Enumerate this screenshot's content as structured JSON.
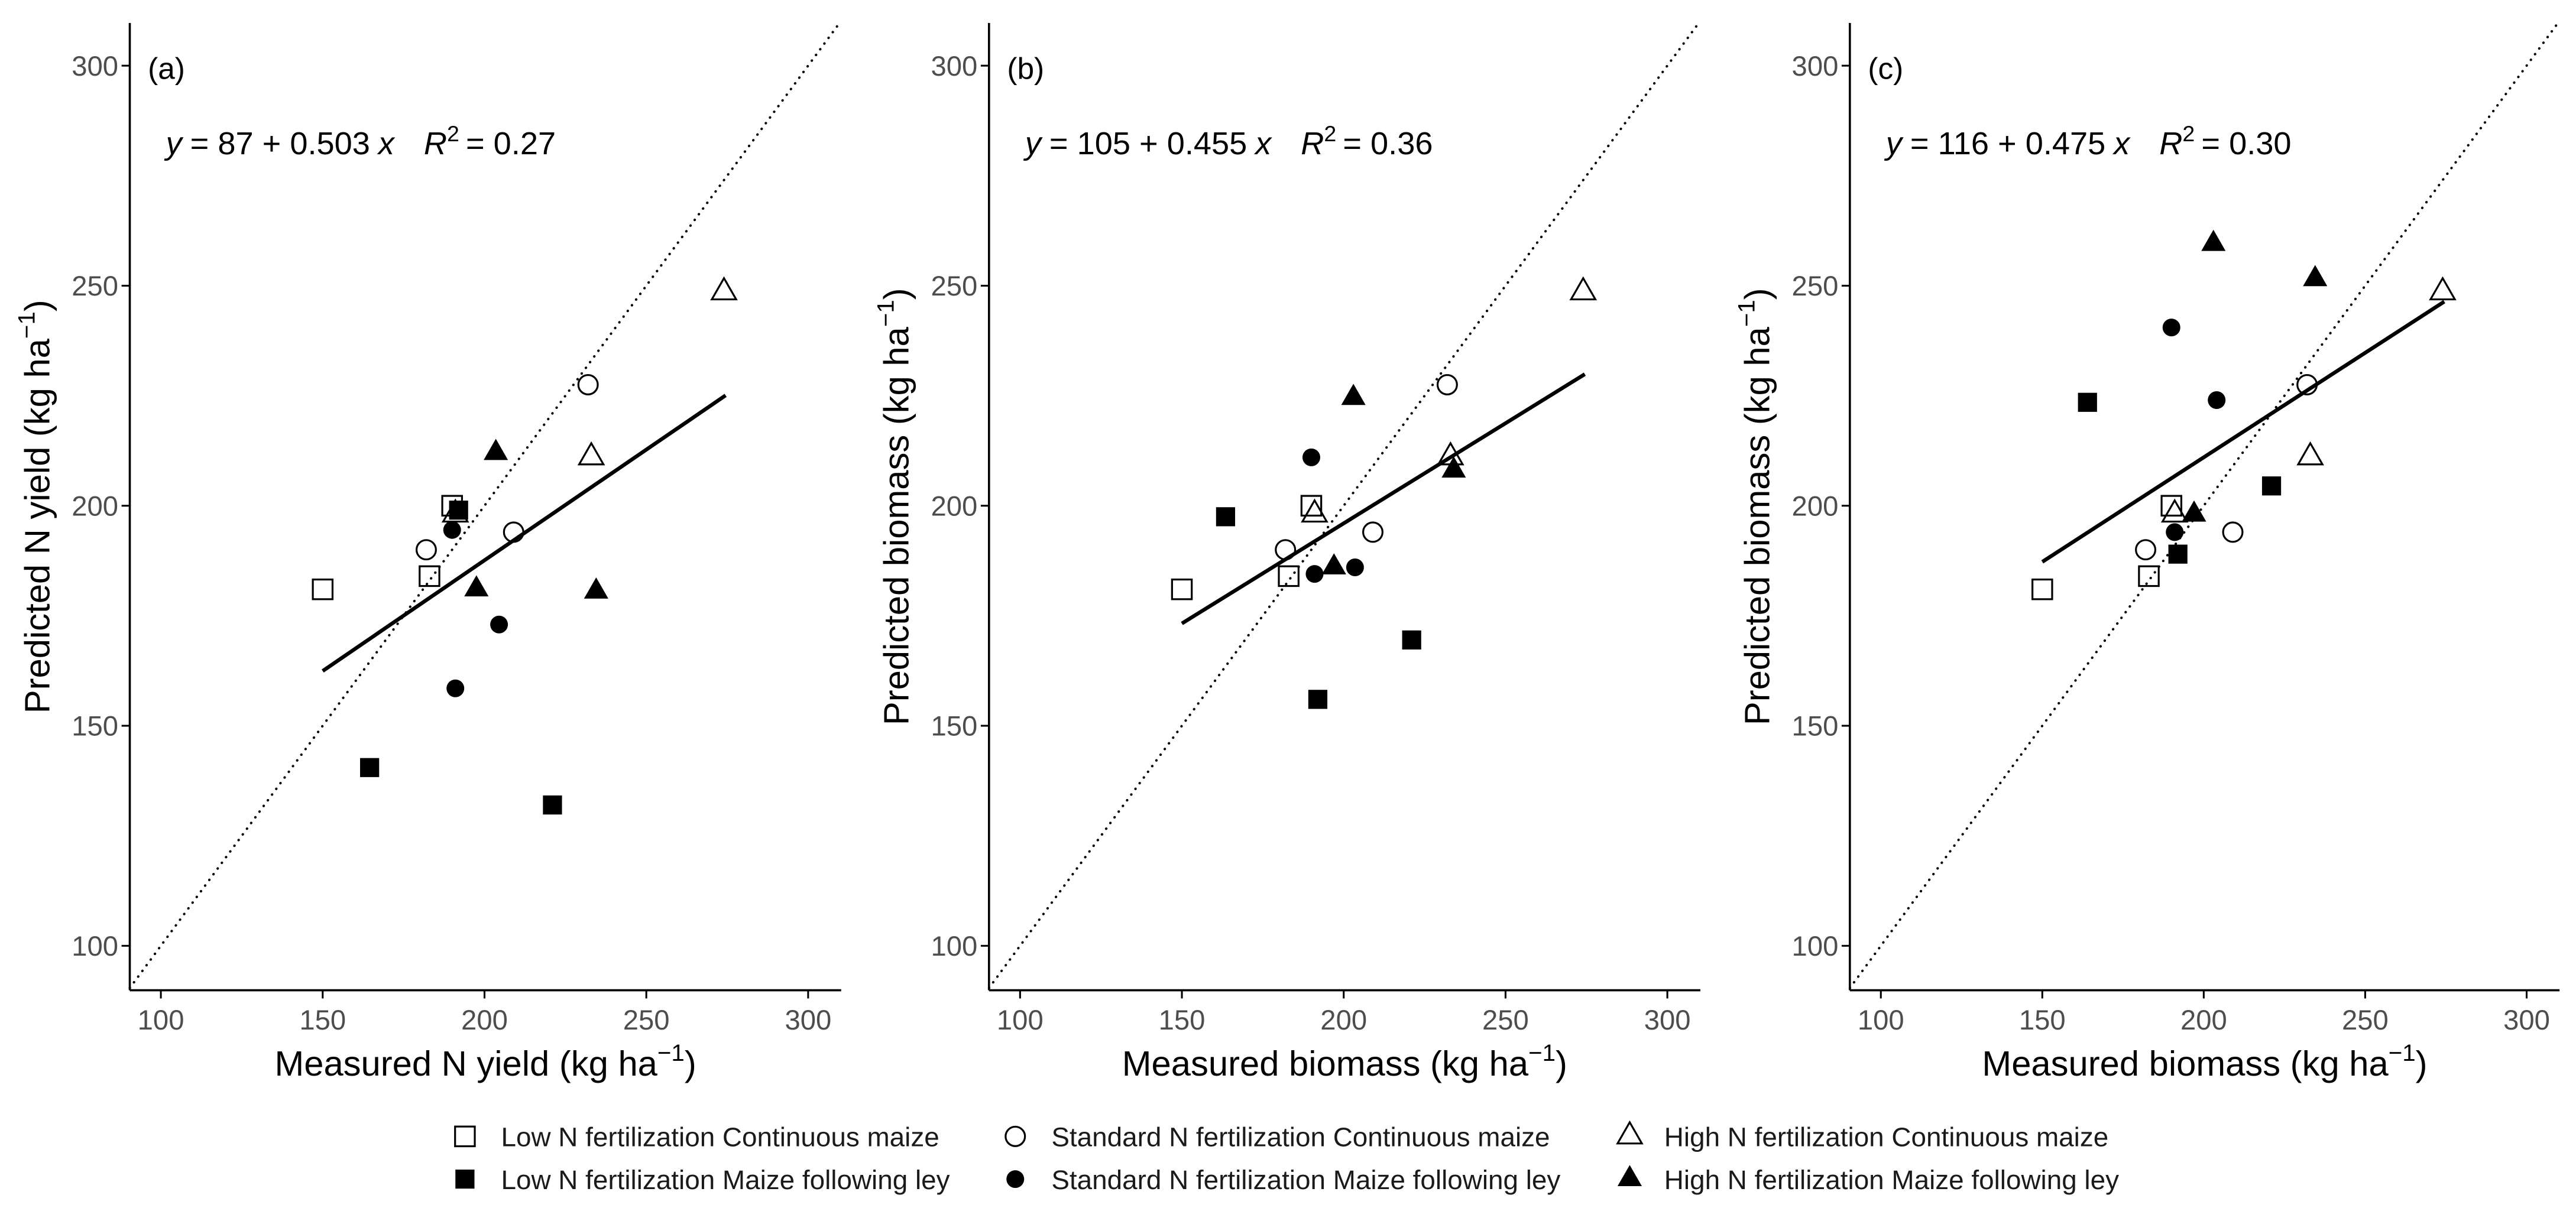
{
  "colors": {
    "background": "#ffffff",
    "marker": "#000000",
    "axis": "#000000",
    "tick_label": "#4d4d4d",
    "title": "#000000",
    "line": "#000000",
    "legend_text": "#1a1a1a"
  },
  "legend": {
    "items": [
      {
        "label": "Low N fertilization Continuous maize",
        "marker": "open-square"
      },
      {
        "label": "Standard N fertilization Continuous maize",
        "marker": "open-circle"
      },
      {
        "label": "High N fertilization Continuous maize",
        "marker": "open-triangle"
      },
      {
        "label": "Low N fertilization Maize following ley",
        "marker": "filled-square"
      },
      {
        "label": "Standard N fertilization Maize following ley",
        "marker": "filled-circle"
      },
      {
        "label": "High N fertilization Maize following ley",
        "marker": "filled-triangle"
      }
    ]
  },
  "chart_data": [
    {
      "type": "scatter",
      "panel_label": "(a)",
      "xlabel": {
        "main": "Measured N yield (kg ha",
        "sup": "−1",
        "end": ")"
      },
      "ylabel": {
        "main": "Predicted N yield (kg ha",
        "sup": "−1",
        "end": ")"
      },
      "xlim": [
        90.4,
        310.2
      ],
      "ylim": [
        89.9,
        309.7
      ],
      "xticks": [
        100,
        150,
        200,
        250,
        300
      ],
      "yticks": [
        100,
        150,
        200,
        250,
        300
      ],
      "grid": false,
      "identity_line": true,
      "regression": {
        "intercept": 87,
        "slope": 0.503,
        "r2": 0.27,
        "x_range": [
          150,
          274.5
        ]
      },
      "equation": {
        "y": "y",
        "eq": "= 87 + 0.503",
        "x": "x",
        "r": "R",
        "r_sup": "2",
        "r2": "= 0.27"
      },
      "series": [
        {
          "legend_index": 0,
          "points": [
            [
              150,
              181
            ],
            [
              190,
              200
            ],
            [
              183,
              184
            ]
          ]
        },
        {
          "legend_index": 1,
          "points": [
            [
              182,
              190
            ],
            [
              209,
              194
            ],
            [
              232,
              227.5
            ]
          ]
        },
        {
          "legend_index": 2,
          "points": [
            [
              274,
              248.5
            ],
            [
              233,
              211
            ],
            [
              191,
              198
            ]
          ]
        },
        {
          "legend_index": 3,
          "points": [
            [
              192,
              199
            ],
            [
              164.5,
              140.5
            ],
            [
              221,
              132
            ]
          ]
        },
        {
          "legend_index": 4,
          "points": [
            [
              190,
              194.5
            ],
            [
              204.5,
              173
            ],
            [
              191,
              158.5
            ]
          ]
        },
        {
          "legend_index": 5,
          "points": [
            [
              203.5,
              212
            ],
            [
              197.5,
              181
            ],
            [
              234.5,
              180.5
            ]
          ]
        }
      ]
    },
    {
      "type": "scatter",
      "panel_label": "(b)",
      "xlabel": {
        "main": "Measured biomass (kg ha",
        "sup": "−1",
        "end": ")"
      },
      "ylabel": {
        "main": "Predicted biomass (kg ha",
        "sup": "−1",
        "end": ")"
      },
      "xlim": [
        90.4,
        310.2
      ],
      "ylim": [
        89.9,
        309.7
      ],
      "xticks": [
        100,
        150,
        200,
        250,
        300
      ],
      "yticks": [
        100,
        150,
        200,
        250,
        300
      ],
      "grid": false,
      "identity_line": true,
      "regression": {
        "intercept": 105,
        "slope": 0.455,
        "r2": 0.36,
        "x_range": [
          150,
          274.5
        ]
      },
      "equation": {
        "y": "y",
        "eq": "= 105 + 0.455",
        "x": "x",
        "r": "R",
        "r_sup": "2",
        "r2": "= 0.36"
      },
      "series": [
        {
          "legend_index": 0,
          "points": [
            [
              150,
              181
            ],
            [
              190,
              200
            ],
            [
              183,
              184
            ]
          ]
        },
        {
          "legend_index": 1,
          "points": [
            [
              182,
              190
            ],
            [
              209,
              194
            ],
            [
              232,
              227.5
            ]
          ]
        },
        {
          "legend_index": 2,
          "points": [
            [
              274,
              248.5
            ],
            [
              233,
              211
            ],
            [
              191,
              198
            ]
          ]
        },
        {
          "legend_index": 3,
          "points": [
            [
              163.5,
              197.5
            ],
            [
              192,
              156
            ],
            [
              221,
              169.5
            ]
          ]
        },
        {
          "legend_index": 4,
          "points": [
            [
              190,
              211
            ],
            [
              191,
              184.5
            ],
            [
              203.5,
              186
            ]
          ]
        },
        {
          "legend_index": 5,
          "points": [
            [
              203,
              224.5
            ],
            [
              197,
              186
            ],
            [
              234,
              208
            ]
          ]
        }
      ]
    },
    {
      "type": "scatter",
      "panel_label": "(c)",
      "xlabel": {
        "main": "Measured biomass (kg ha",
        "sup": "−1",
        "end": ")"
      },
      "ylabel": {
        "main": "Predicted biomass (kg ha",
        "sup": "−1",
        "end": ")"
      },
      "xlim": [
        90.4,
        310.2
      ],
      "ylim": [
        89.9,
        309.7
      ],
      "xticks": [
        100,
        150,
        200,
        250,
        300
      ],
      "yticks": [
        100,
        150,
        200,
        250,
        300
      ],
      "grid": false,
      "identity_line": true,
      "regression": {
        "intercept": 116,
        "slope": 0.475,
        "r2": 0.3,
        "x_range": [
          150,
          274.5
        ]
      },
      "equation": {
        "y": "y",
        "eq": "= 116 + 0.475",
        "x": "x",
        "r": "R",
        "r_sup": "2",
        "r2": "= 0.30"
      },
      "series": [
        {
          "legend_index": 0,
          "points": [
            [
              150,
              181
            ],
            [
              190,
              200
            ],
            [
              183,
              184
            ]
          ]
        },
        {
          "legend_index": 1,
          "points": [
            [
              182,
              190
            ],
            [
              209,
              194
            ],
            [
              232,
              227.5
            ]
          ]
        },
        {
          "legend_index": 2,
          "points": [
            [
              274,
              248.5
            ],
            [
              233,
              211
            ],
            [
              191,
              198
            ]
          ]
        },
        {
          "legend_index": 3,
          "points": [
            [
              164,
              223.5
            ],
            [
              192,
              189
            ],
            [
              221,
              204.5
            ]
          ]
        },
        {
          "legend_index": 4,
          "points": [
            [
              190,
              240.5
            ],
            [
              191,
              194
            ],
            [
              204,
              224
            ]
          ]
        },
        {
          "legend_index": 5,
          "points": [
            [
              203,
              259.5
            ],
            [
              197,
              198
            ],
            [
              234.5,
              251.5
            ]
          ]
        }
      ]
    }
  ]
}
